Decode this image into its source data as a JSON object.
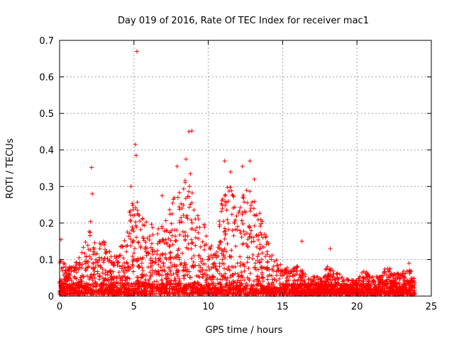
{
  "chart_data": {
    "type": "scatter",
    "title": "Day 019 of 2016, Rate Of TEC Index for receiver mac1",
    "xlabel": "GPS time / hours",
    "ylabel": "ROTI / TECUs",
    "xlim": [
      0,
      25
    ],
    "ylim": [
      0,
      0.7
    ],
    "xticks": [
      "0",
      "5",
      "10",
      "15",
      "20",
      "25"
    ],
    "yticks": [
      "0",
      "0.1",
      "0.2",
      "0.3",
      "0.4",
      "0.5",
      "0.6",
      "0.7"
    ],
    "grid": true,
    "marker": "plus",
    "marker_color": "#ff0000",
    "x_extent": [
      0,
      23.9
    ],
    "notable_points": [
      {
        "x": 5.2,
        "y": 0.67
      },
      {
        "x": 8.7,
        "y": 0.45
      },
      {
        "x": 8.9,
        "y": 0.452
      },
      {
        "x": 5.1,
        "y": 0.415
      },
      {
        "x": 5.15,
        "y": 0.385
      },
      {
        "x": 8.5,
        "y": 0.375
      },
      {
        "x": 11.1,
        "y": 0.37
      },
      {
        "x": 12.8,
        "y": 0.37
      },
      {
        "x": 2.15,
        "y": 0.352
      },
      {
        "x": 12.3,
        "y": 0.355
      },
      {
        "x": 7.9,
        "y": 0.355
      },
      {
        "x": 11.5,
        "y": 0.34
      },
      {
        "x": 8.8,
        "y": 0.335
      },
      {
        "x": 13.1,
        "y": 0.32
      },
      {
        "x": 6.9,
        "y": 0.275
      },
      {
        "x": 4.8,
        "y": 0.3
      },
      {
        "x": 2.2,
        "y": 0.28
      },
      {
        "x": 0.1,
        "y": 0.155
      },
      {
        "x": 16.3,
        "y": 0.15
      },
      {
        "x": 18.2,
        "y": 0.13
      },
      {
        "x": 23.5,
        "y": 0.09
      }
    ],
    "envelope": [
      {
        "x": 0.0,
        "y": 0.1
      },
      {
        "x": 0.5,
        "y": 0.08
      },
      {
        "x": 1.0,
        "y": 0.08
      },
      {
        "x": 1.5,
        "y": 0.12
      },
      {
        "x": 2.0,
        "y": 0.22
      },
      {
        "x": 2.5,
        "y": 0.13
      },
      {
        "x": 3.0,
        "y": 0.17
      },
      {
        "x": 3.5,
        "y": 0.1
      },
      {
        "x": 4.0,
        "y": 0.12
      },
      {
        "x": 4.5,
        "y": 0.18
      },
      {
        "x": 5.0,
        "y": 0.3
      },
      {
        "x": 5.5,
        "y": 0.24
      },
      {
        "x": 6.0,
        "y": 0.2
      },
      {
        "x": 6.5,
        "y": 0.18
      },
      {
        "x": 7.0,
        "y": 0.2
      },
      {
        "x": 7.5,
        "y": 0.25
      },
      {
        "x": 8.0,
        "y": 0.3
      },
      {
        "x": 8.5,
        "y": 0.32
      },
      {
        "x": 9.0,
        "y": 0.28
      },
      {
        "x": 9.5,
        "y": 0.22
      },
      {
        "x": 10.0,
        "y": 0.16
      },
      {
        "x": 10.5,
        "y": 0.12
      },
      {
        "x": 11.0,
        "y": 0.3
      },
      {
        "x": 11.5,
        "y": 0.3
      },
      {
        "x": 12.0,
        "y": 0.25
      },
      {
        "x": 12.5,
        "y": 0.3
      },
      {
        "x": 13.0,
        "y": 0.28
      },
      {
        "x": 13.5,
        "y": 0.22
      },
      {
        "x": 14.0,
        "y": 0.15
      },
      {
        "x": 14.5,
        "y": 0.1
      },
      {
        "x": 15.0,
        "y": 0.08
      },
      {
        "x": 15.5,
        "y": 0.07
      },
      {
        "x": 16.0,
        "y": 0.09
      },
      {
        "x": 16.5,
        "y": 0.06
      },
      {
        "x": 17.0,
        "y": 0.05
      },
      {
        "x": 17.5,
        "y": 0.05
      },
      {
        "x": 18.0,
        "y": 0.08
      },
      {
        "x": 18.5,
        "y": 0.07
      },
      {
        "x": 19.0,
        "y": 0.05
      },
      {
        "x": 19.5,
        "y": 0.04
      },
      {
        "x": 20.0,
        "y": 0.04
      },
      {
        "x": 20.5,
        "y": 0.07
      },
      {
        "x": 21.0,
        "y": 0.05
      },
      {
        "x": 21.5,
        "y": 0.05
      },
      {
        "x": 22.0,
        "y": 0.08
      },
      {
        "x": 22.5,
        "y": 0.06
      },
      {
        "x": 23.0,
        "y": 0.06
      },
      {
        "x": 23.5,
        "y": 0.08
      },
      {
        "x": 23.9,
        "y": 0.04
      }
    ]
  }
}
